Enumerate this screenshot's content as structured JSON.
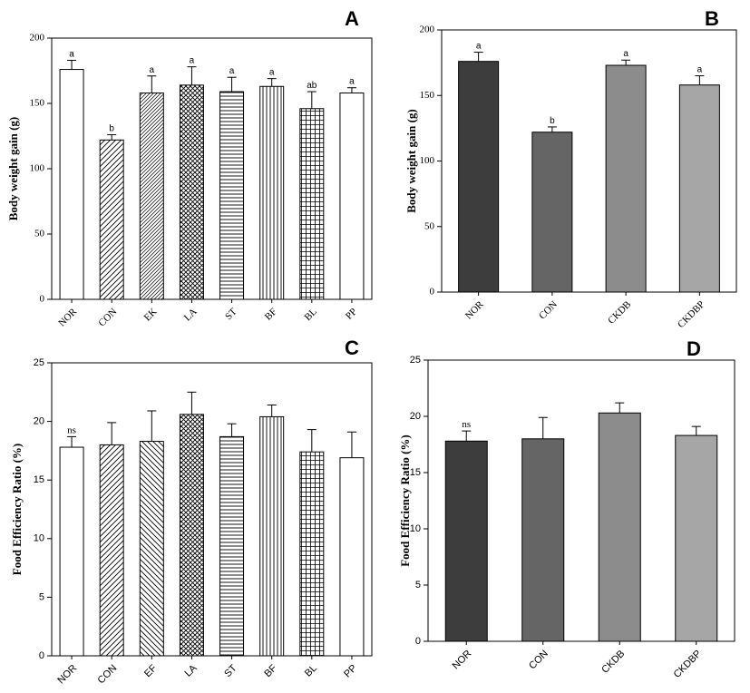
{
  "chart_data": [
    {
      "panel": "A",
      "type": "bar",
      "ylabel": "Body weight gain (g)",
      "ylim": [
        0,
        200
      ],
      "yticks": [
        0,
        50,
        100,
        150,
        200
      ],
      "categories": [
        "NOR",
        "CON",
        "EK",
        "LA",
        "ST",
        "BF",
        "BL",
        "PP"
      ],
      "values": [
        176,
        122,
        158,
        164,
        159,
        163,
        146,
        158
      ],
      "errors": [
        7,
        4,
        13,
        14,
        11,
        6,
        13,
        4
      ],
      "annotations": [
        "a",
        "b",
        "a",
        "a",
        "a",
        "a",
        "ab",
        "a"
      ],
      "fills": [
        "white",
        "diag-right",
        "vertical-dense",
        "crosshatch",
        "horizontal",
        "vertical",
        "grid",
        "white"
      ]
    },
    {
      "panel": "B",
      "type": "bar",
      "ylabel": "Body weight gain (g)",
      "ylim": [
        0,
        200
      ],
      "yticks": [
        0,
        50,
        100,
        150,
        200
      ],
      "categories": [
        "NOR",
        "CON",
        "CKDB",
        "CKDBP"
      ],
      "values": [
        176,
        122,
        173,
        158
      ],
      "errors": [
        7,
        4,
        4,
        7
      ],
      "annotations": [
        "a",
        "b",
        "a",
        "a"
      ],
      "colors": [
        "#3d3d3d",
        "#656565",
        "#8c8c8c",
        "#a6a6a6"
      ]
    },
    {
      "panel": "C",
      "type": "bar",
      "ylabel": "Food Efficiency Ratio (%)",
      "ylim": [
        0,
        25
      ],
      "yticks": [
        0,
        5,
        10,
        15,
        20,
        25
      ],
      "categories": [
        "NOR",
        "CON",
        "EF",
        "LA",
        "ST",
        "BF",
        "BL",
        "PP"
      ],
      "values": [
        17.8,
        18.0,
        18.3,
        20.6,
        18.7,
        20.4,
        17.4,
        16.9
      ],
      "errors": [
        0.9,
        1.9,
        2.6,
        1.9,
        1.1,
        1.0,
        1.9,
        2.2
      ],
      "annotations": [
        "ns",
        "",
        "",
        "",
        "",
        "",
        "",
        ""
      ],
      "fills": [
        "white",
        "diag-right",
        "diag-left",
        "crosshatch",
        "horizontal",
        "vertical",
        "grid",
        "white"
      ]
    },
    {
      "panel": "D",
      "type": "bar",
      "ylabel": "Food Efficiency Ratio (%)",
      "ylim": [
        0,
        25
      ],
      "yticks": [
        0,
        5,
        10,
        15,
        20,
        25
      ],
      "categories": [
        "NOR",
        "CON",
        "CKDB",
        "CKDBP"
      ],
      "values": [
        17.8,
        18.0,
        20.3,
        18.3
      ],
      "errors": [
        0.9,
        1.9,
        0.9,
        0.8
      ],
      "annotations": [
        "ns",
        "",
        "",
        ""
      ],
      "colors": [
        "#3d3d3d",
        "#656565",
        "#8c8c8c",
        "#a6a6a6"
      ]
    }
  ]
}
